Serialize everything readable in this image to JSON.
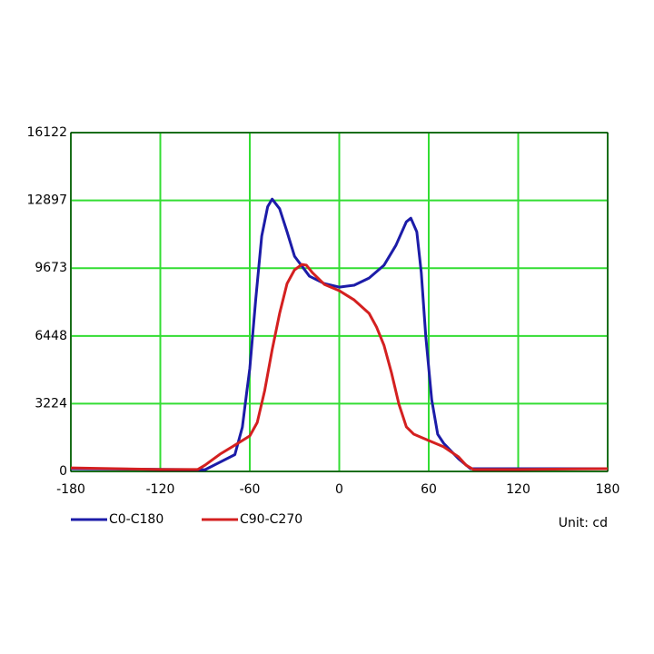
{
  "chart_data": {
    "type": "line",
    "xlim": [
      -180,
      180
    ],
    "xticks": [
      -180,
      -120,
      -60,
      0,
      60,
      120,
      180
    ],
    "ylim": [
      0,
      16122
    ],
    "yticks": [
      0,
      3224,
      6448,
      9673,
      12897,
      16122
    ],
    "grid": true,
    "grid_color": "#33dd33",
    "legend": "bottom",
    "unit_label": "Unit: cd",
    "series": [
      {
        "name": "C0-C180",
        "color": "#1c1ca8",
        "x": [
          -180,
          -90,
          -70,
          -65,
          -62,
          -60,
          -56,
          -52,
          -48,
          -45,
          -40,
          -35,
          -30,
          -20,
          -10,
          0,
          10,
          20,
          30,
          38,
          45,
          48,
          52,
          55,
          58,
          62,
          66,
          70,
          80,
          88,
          100,
          180
        ],
        "values": [
          130,
          80,
          800,
          2100,
          3800,
          4900,
          8200,
          11200,
          12600,
          12960,
          12500,
          11400,
          10240,
          9290,
          8940,
          8770,
          8860,
          9200,
          9810,
          10760,
          11880,
          12050,
          11400,
          9460,
          6440,
          3410,
          1770,
          1340,
          600,
          130,
          130,
          130
        ]
      },
      {
        "name": "C90-C270",
        "color": "#d42020",
        "x": [
          -180,
          -150,
          -120,
          -95,
          -90,
          -80,
          -70,
          -60,
          -55,
          -50,
          -45,
          -40,
          -35,
          -30,
          -25,
          -22,
          -18,
          -10,
          0,
          10,
          20,
          25,
          30,
          35,
          40,
          45,
          50,
          60,
          70,
          80,
          85,
          90,
          120,
          180
        ],
        "values": [
          170,
          130,
          90,
          90,
          300,
          820,
          1250,
          1690,
          2330,
          3850,
          5790,
          7520,
          8940,
          9590,
          9850,
          9810,
          9460,
          8900,
          8600,
          8160,
          7520,
          6870,
          6000,
          4700,
          3200,
          2120,
          1770,
          1470,
          1170,
          690,
          300,
          90,
          90,
          130
        ]
      }
    ]
  }
}
